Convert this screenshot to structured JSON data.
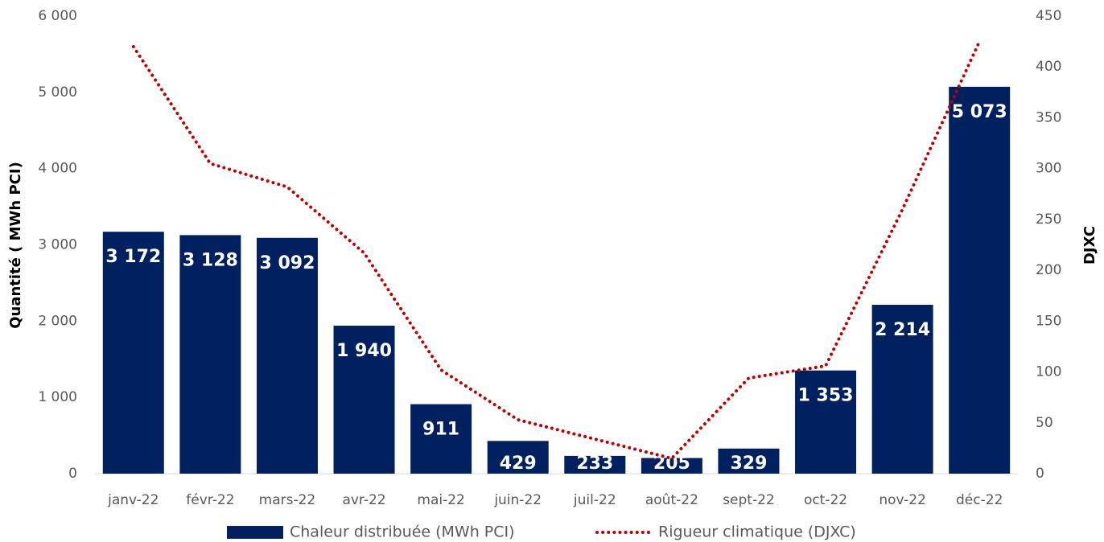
{
  "chart_data": {
    "type": "combo",
    "y_label": "Quantité ( MWh PCI)",
    "y2_label": "DJXC",
    "categories": [
      "janv-22",
      "févr-22",
      "mars-22",
      "avr-22",
      "mai-22",
      "juin-22",
      "juil-22",
      "août-22",
      "sept-22",
      "oct-22",
      "nov-22",
      "déc-22"
    ],
    "series": [
      {
        "name": "Chaleur distribuée (MWh PCI)",
        "type": "bar",
        "color": "#002060",
        "values": [
          3172,
          3128,
          3092,
          1940,
          911,
          429,
          233,
          205,
          329,
          1353,
          2214,
          5073
        ],
        "value_labels": [
          "3 172",
          "3 128",
          "3 092",
          "1 940",
          "911",
          "429",
          "233",
          "205",
          "329",
          "1 353",
          "2 214",
          "5 073"
        ]
      },
      {
        "name": "Rigueur climatique (DJXC)",
        "type": "line",
        "axis": "y2",
        "color": "#c00000",
        "line_style": "dotted",
        "values": [
          420,
          305,
          282,
          217,
          102,
          53,
          34,
          15,
          94,
          106,
          260,
          425
        ]
      }
    ],
    "ylim": [
      0,
      6000
    ],
    "yticks": [
      0,
      {
        "value": 1000,
        "label": "1 000"
      },
      {
        "value": 2000,
        "label": "2 000"
      },
      {
        "value": 3000,
        "label": "3 000"
      },
      {
        "value": 4000,
        "label": "4 000"
      },
      {
        "value": 5000,
        "label": "5 000"
      },
      {
        "value": 6000,
        "label": "6 000"
      }
    ],
    "y2lim": [
      0,
      450
    ],
    "y2ticks": [
      0,
      50,
      100,
      150,
      200,
      250,
      300,
      350,
      400,
      450
    ],
    "grid": false,
    "legend": "bottom"
  }
}
